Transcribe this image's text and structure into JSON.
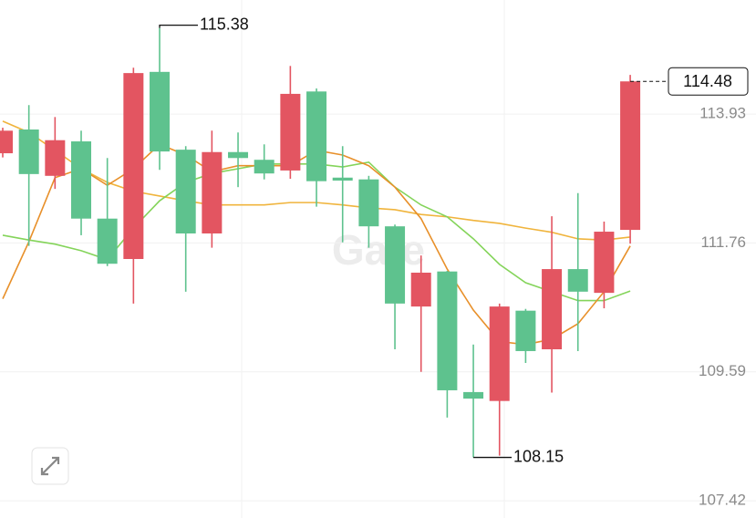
{
  "chart_data": {
    "type": "candlestick",
    "watermark": "Gate",
    "up_color": "#e35561",
    "down_color": "#5ec28e",
    "open": [
      113.27,
      113.67,
      112.89,
      113.47,
      112.17,
      111.49,
      114.64,
      113.33,
      111.92,
      113.29,
      113.16,
      112.98,
      114.31,
      112.86,
      112.83,
      112.04,
      110.69,
      111.28,
      109.25,
      109.1,
      110.62,
      109.97,
      111.32,
      110.92,
      111.98
    ],
    "high": [
      113.7,
      114.08,
      113.88,
      113.65,
      113.19,
      114.71,
      115.38,
      113.39,
      113.65,
      113.62,
      113.42,
      114.74,
      114.36,
      113.39,
      112.89,
      112.07,
      111.55,
      111.29,
      110.05,
      110.74,
      110.65,
      112.21,
      112.6,
      112.12,
      114.59
    ],
    "low": [
      113.2,
      111.71,
      112.67,
      111.89,
      111.37,
      110.74,
      112.99,
      110.94,
      111.68,
      112.7,
      112.83,
      112.84,
      112.37,
      111.77,
      111.68,
      109.97,
      109.59,
      108.82,
      108.15,
      108.18,
      109.74,
      109.24,
      109.94,
      110.66,
      111.75
    ],
    "close": [
      113.65,
      112.92,
      113.49,
      112.17,
      111.41,
      114.62,
      113.3,
      111.92,
      113.29,
      113.19,
      112.93,
      114.27,
      112.8,
      112.81,
      112.04,
      110.74,
      111.26,
      109.28,
      109.14,
      110.69,
      109.94,
      111.32,
      110.94,
      111.95,
      114.48
    ],
    "moving_averages": [
      {
        "color": "#f0b43c",
        "values": [
          113.81,
          113.62,
          113.32,
          113.01,
          112.78,
          112.63,
          112.55,
          112.47,
          112.4,
          112.4,
          112.4,
          112.44,
          112.44,
          112.4,
          112.35,
          112.32,
          112.24,
          112.2,
          112.14,
          112.09,
          112.01,
          111.94,
          111.83,
          111.81,
          111.86
        ]
      },
      {
        "color": "#84d45a",
        "values": [
          111.89,
          111.81,
          111.74,
          111.63,
          111.48,
          112.01,
          112.47,
          112.78,
          112.93,
          113.01,
          113.09,
          113.09,
          113.09,
          113.04,
          113.12,
          112.7,
          112.4,
          112.2,
          111.83,
          111.4,
          111.09,
          110.94,
          110.79,
          110.79,
          110.95
        ]
      },
      {
        "color": "#e8902a",
        "values": [
          110.82,
          111.78,
          112.86,
          113.01,
          112.73,
          113.01,
          113.42,
          113.24,
          112.96,
          113.06,
          113.06,
          113.06,
          113.32,
          113.24,
          113.06,
          112.7,
          112.17,
          111.32,
          110.63,
          110.1,
          110.05,
          110.14,
          110.4,
          110.94,
          111.71
        ]
      }
    ],
    "ylim": [
      107.13,
      115.85
    ],
    "yticks": [
      113.93,
      111.76,
      109.59,
      107.42
    ],
    "grid": true
  }
}
